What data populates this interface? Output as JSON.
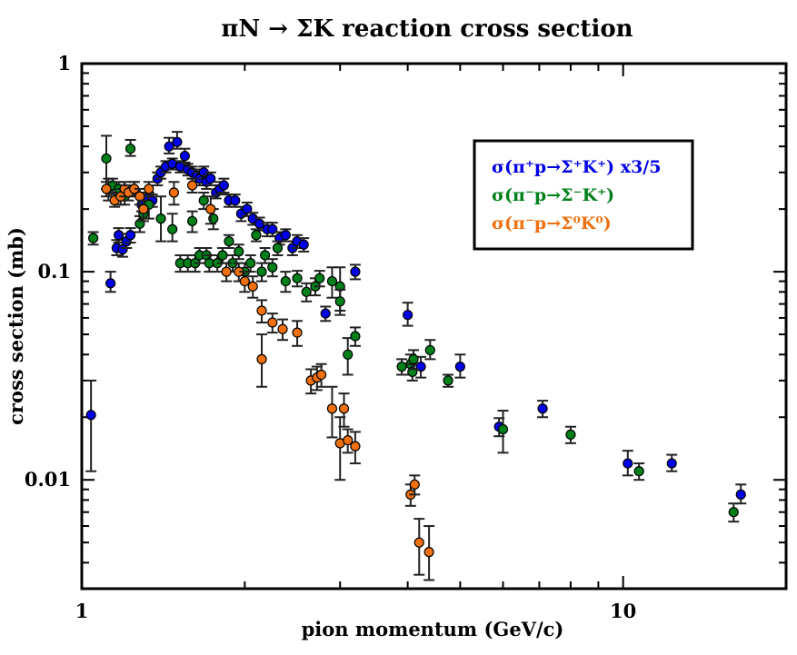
{
  "chart_data": {
    "type": "scatter",
    "title": "πN → ΣK reaction cross section",
    "xlabel": "pion momentum (GeV/c)",
    "ylabel": "cross section (mb)",
    "xscale": "log",
    "yscale": "log",
    "xlim": [
      1.0,
      20.0
    ],
    "ylim": [
      0.003,
      1.0
    ],
    "xtick_labels": [
      {
        "value": 1,
        "label": "1"
      },
      {
        "value": 10,
        "label": "10"
      }
    ],
    "ytick_labels": [
      {
        "value": 1,
        "label": "1"
      },
      {
        "value": 0.1,
        "label": "0.1"
      },
      {
        "value": 0.01,
        "label": "0.01"
      }
    ],
    "legend_position": "upper-right",
    "series": [
      {
        "name": "σ(π⁺p→Σ⁺K⁺) x3/5",
        "color": "#0000e6",
        "points": [
          [
            1.04,
            0.0205,
            0.0095,
            0.0095
          ],
          [
            1.13,
            0.088,
            0.008,
            0.012
          ],
          [
            1.16,
            0.13,
            0.01,
            0.012
          ],
          [
            1.17,
            0.15,
            0.012,
            0.012
          ],
          [
            1.19,
            0.128,
            0.01,
            0.01
          ],
          [
            1.21,
            0.14,
            0.01,
            0.012
          ],
          [
            1.23,
            0.15,
            0.012,
            0.012
          ],
          [
            1.29,
            0.21,
            0.015,
            0.015
          ],
          [
            1.32,
            0.225,
            0.015,
            0.015
          ],
          [
            1.35,
            0.22,
            0.015,
            0.015
          ],
          [
            1.38,
            0.28,
            0.02,
            0.02
          ],
          [
            1.4,
            0.3,
            0.02,
            0.02
          ],
          [
            1.43,
            0.32,
            0.02,
            0.02
          ],
          [
            1.45,
            0.4,
            0.03,
            0.04
          ],
          [
            1.47,
            0.33,
            0.02,
            0.02
          ],
          [
            1.5,
            0.42,
            0.03,
            0.05
          ],
          [
            1.52,
            0.32,
            0.02,
            0.02
          ],
          [
            1.55,
            0.36,
            0.025,
            0.03
          ],
          [
            1.57,
            0.31,
            0.02,
            0.02
          ],
          [
            1.6,
            0.3,
            0.02,
            0.02
          ],
          [
            1.63,
            0.29,
            0.02,
            0.02
          ],
          [
            1.65,
            0.28,
            0.02,
            0.02
          ],
          [
            1.68,
            0.3,
            0.02,
            0.02
          ],
          [
            1.7,
            0.27,
            0.02,
            0.02
          ],
          [
            1.73,
            0.28,
            0.02,
            0.02
          ],
          [
            1.77,
            0.24,
            0.015,
            0.02
          ],
          [
            1.8,
            0.25,
            0.015,
            0.02
          ],
          [
            1.83,
            0.26,
            0.02,
            0.02
          ],
          [
            1.87,
            0.22,
            0.015,
            0.015
          ],
          [
            1.92,
            0.22,
            0.015,
            0.015
          ],
          [
            1.97,
            0.19,
            0.015,
            0.015
          ],
          [
            2.02,
            0.2,
            0.015,
            0.015
          ],
          [
            2.07,
            0.18,
            0.012,
            0.012
          ],
          [
            2.13,
            0.17,
            0.012,
            0.012
          ],
          [
            2.2,
            0.16,
            0.012,
            0.012
          ],
          [
            2.25,
            0.16,
            0.012,
            0.012
          ],
          [
            2.32,
            0.145,
            0.01,
            0.01
          ],
          [
            2.38,
            0.15,
            0.01,
            0.01
          ],
          [
            2.45,
            0.13,
            0.01,
            0.01
          ],
          [
            2.5,
            0.14,
            0.01,
            0.01
          ],
          [
            2.57,
            0.135,
            0.01,
            0.01
          ],
          [
            2.82,
            0.063,
            0.005,
            0.005
          ],
          [
            3.2,
            0.1,
            0.008,
            0.008
          ],
          [
            4.0,
            0.062,
            0.007,
            0.009
          ],
          [
            4.23,
            0.035,
            0.004,
            0.004
          ],
          [
            5.0,
            0.035,
            0.004,
            0.005
          ],
          [
            5.9,
            0.018,
            0.0018,
            0.0018
          ],
          [
            7.1,
            0.022,
            0.002,
            0.002
          ],
          [
            10.2,
            0.012,
            0.0015,
            0.0018
          ],
          [
            12.3,
            0.012,
            0.001,
            0.0012
          ],
          [
            16.5,
            0.0085,
            0.0008,
            0.001
          ]
        ]
      },
      {
        "name": "σ(π⁻p→Σ⁻K⁺)",
        "color": "#00801a",
        "points": [
          [
            1.05,
            0.145,
            0.01,
            0.01
          ],
          [
            1.11,
            0.35,
            0.1,
            0.1
          ],
          [
            1.12,
            0.25,
            0.03,
            0.03
          ],
          [
            1.14,
            0.26,
            0.02,
            0.02
          ],
          [
            1.17,
            0.25,
            0.02,
            0.02
          ],
          [
            1.2,
            0.23,
            0.02,
            0.02
          ],
          [
            1.23,
            0.39,
            0.03,
            0.04
          ],
          [
            1.25,
            0.25,
            0.02,
            0.02
          ],
          [
            1.28,
            0.17,
            0.015,
            0.015
          ],
          [
            1.3,
            0.19,
            0.015,
            0.015
          ],
          [
            1.33,
            0.21,
            0.03,
            0.03
          ],
          [
            1.4,
            0.18,
            0.04,
            0.05
          ],
          [
            1.47,
            0.16,
            0.02,
            0.03
          ],
          [
            1.52,
            0.11,
            0.01,
            0.01
          ],
          [
            1.57,
            0.11,
            0.01,
            0.01
          ],
          [
            1.6,
            0.175,
            0.02,
            0.02
          ],
          [
            1.62,
            0.11,
            0.01,
            0.01
          ],
          [
            1.65,
            0.12,
            0.01,
            0.01
          ],
          [
            1.68,
            0.22,
            0.02,
            0.02
          ],
          [
            1.7,
            0.12,
            0.01,
            0.01
          ],
          [
            1.72,
            0.11,
            0.01,
            0.01
          ],
          [
            1.75,
            0.18,
            0.02,
            0.02
          ],
          [
            1.78,
            0.11,
            0.01,
            0.01
          ],
          [
            1.82,
            0.12,
            0.01,
            0.01
          ],
          [
            1.87,
            0.14,
            0.01,
            0.01
          ],
          [
            1.9,
            0.11,
            0.01,
            0.01
          ],
          [
            1.95,
            0.125,
            0.01,
            0.01
          ],
          [
            2.0,
            0.1,
            0.01,
            0.01
          ],
          [
            2.05,
            0.11,
            0.01,
            0.01
          ],
          [
            2.1,
            0.15,
            0.01,
            0.01
          ],
          [
            2.15,
            0.1,
            0.01,
            0.01
          ],
          [
            2.18,
            0.12,
            0.01,
            0.01
          ],
          [
            2.25,
            0.105,
            0.01,
            0.01
          ],
          [
            2.3,
            0.13,
            0.01,
            0.01
          ],
          [
            2.38,
            0.09,
            0.01,
            0.01
          ],
          [
            2.5,
            0.093,
            0.008,
            0.008
          ],
          [
            2.6,
            0.08,
            0.008,
            0.008
          ],
          [
            2.7,
            0.085,
            0.008,
            0.008
          ],
          [
            2.75,
            0.093,
            0.008,
            0.008
          ],
          [
            2.9,
            0.09,
            0.015,
            0.015
          ],
          [
            3.0,
            0.085,
            0.02,
            0.02
          ],
          [
            3.0,
            0.072,
            0.01,
            0.01
          ],
          [
            3.1,
            0.04,
            0.008,
            0.008
          ],
          [
            3.2,
            0.049,
            0.005,
            0.005
          ],
          [
            3.9,
            0.035,
            0.003,
            0.003
          ],
          [
            4.05,
            0.036,
            0.004,
            0.004
          ],
          [
            4.08,
            0.033,
            0.003,
            0.003
          ],
          [
            4.1,
            0.038,
            0.004,
            0.004
          ],
          [
            4.4,
            0.042,
            0.004,
            0.005
          ],
          [
            4.75,
            0.03,
            0.002,
            0.002
          ],
          [
            6.0,
            0.0175,
            0.004,
            0.004
          ],
          [
            8.0,
            0.0165,
            0.0015,
            0.0015
          ],
          [
            10.7,
            0.011,
            0.001,
            0.001
          ],
          [
            16.0,
            0.007,
            0.0007,
            0.0007
          ]
        ]
      },
      {
        "name": "σ(π⁻p→Σ⁰K⁰)",
        "color": "#f07010",
        "points": [
          [
            1.11,
            0.25,
            0.02,
            0.02
          ],
          [
            1.15,
            0.22,
            0.015,
            0.015
          ],
          [
            1.18,
            0.23,
            0.02,
            0.02
          ],
          [
            1.2,
            0.25,
            0.02,
            0.02
          ],
          [
            1.22,
            0.24,
            0.02,
            0.02
          ],
          [
            1.25,
            0.25,
            0.02,
            0.02
          ],
          [
            1.28,
            0.23,
            0.02,
            0.02
          ],
          [
            1.3,
            0.2,
            0.02,
            0.02
          ],
          [
            1.33,
            0.25,
            0.02,
            0.02
          ],
          [
            1.48,
            0.24,
            0.03,
            0.03
          ],
          [
            1.6,
            0.26,
            0.02,
            0.02
          ],
          [
            1.73,
            0.2,
            0.03,
            0.03
          ],
          [
            1.85,
            0.1,
            0.01,
            0.01
          ],
          [
            1.95,
            0.1,
            0.01,
            0.01
          ],
          [
            2.0,
            0.09,
            0.01,
            0.01
          ],
          [
            2.07,
            0.085,
            0.01,
            0.01
          ],
          [
            2.15,
            0.065,
            0.008,
            0.008
          ],
          [
            2.15,
            0.038,
            0.01,
            0.012
          ],
          [
            2.25,
            0.057,
            0.006,
            0.006
          ],
          [
            2.35,
            0.053,
            0.006,
            0.006
          ],
          [
            2.5,
            0.051,
            0.007,
            0.007
          ],
          [
            2.65,
            0.03,
            0.004,
            0.004
          ],
          [
            2.72,
            0.031,
            0.004,
            0.004
          ],
          [
            2.77,
            0.032,
            0.004,
            0.004
          ],
          [
            2.9,
            0.022,
            0.006,
            0.006
          ],
          [
            3.0,
            0.015,
            0.005,
            0.005
          ],
          [
            3.05,
            0.022,
            0.004,
            0.004
          ],
          [
            3.1,
            0.0155,
            0.002,
            0.002
          ],
          [
            3.2,
            0.0145,
            0.0025,
            0.0025
          ],
          [
            4.05,
            0.0085,
            0.001,
            0.001
          ],
          [
            4.12,
            0.0095,
            0.001,
            0.001
          ],
          [
            4.2,
            0.005,
            0.0015,
            0.0015
          ],
          [
            4.38,
            0.0045,
            0.0012,
            0.0015
          ]
        ]
      }
    ]
  }
}
